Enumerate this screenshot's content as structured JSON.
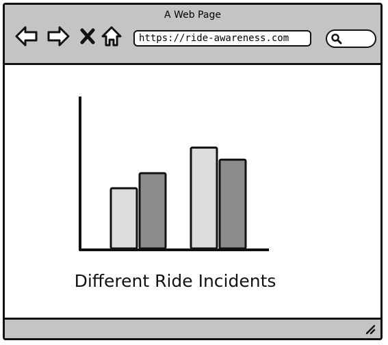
{
  "window": {
    "title": "A Web Page"
  },
  "toolbar": {
    "buttons": [
      {
        "name": "back",
        "icon": "back-arrow-icon"
      },
      {
        "name": "forward",
        "icon": "forward-arrow-icon"
      },
      {
        "name": "stop",
        "icon": "close-x-icon"
      },
      {
        "name": "home",
        "icon": "home-icon"
      }
    ],
    "url": "https://ride-awareness.com",
    "search": {
      "icon": "search-icon",
      "value": ""
    }
  },
  "colors": {
    "chrome": "#c4c4c4",
    "bar_light": "#dcdcdc",
    "bar_dark": "#8c8c8c",
    "ink": "#111111"
  },
  "chart_data": {
    "type": "bar",
    "title": "",
    "caption": "Different Ride Incidents",
    "categories": [
      "",
      ""
    ],
    "series": [
      {
        "values": [
          40,
          67
        ]
      },
      {
        "values": [
          50,
          59
        ]
      }
    ],
    "xlabel": "",
    "ylabel": "",
    "ylim": [
      0,
      100
    ],
    "grid": false,
    "legend": "none"
  }
}
